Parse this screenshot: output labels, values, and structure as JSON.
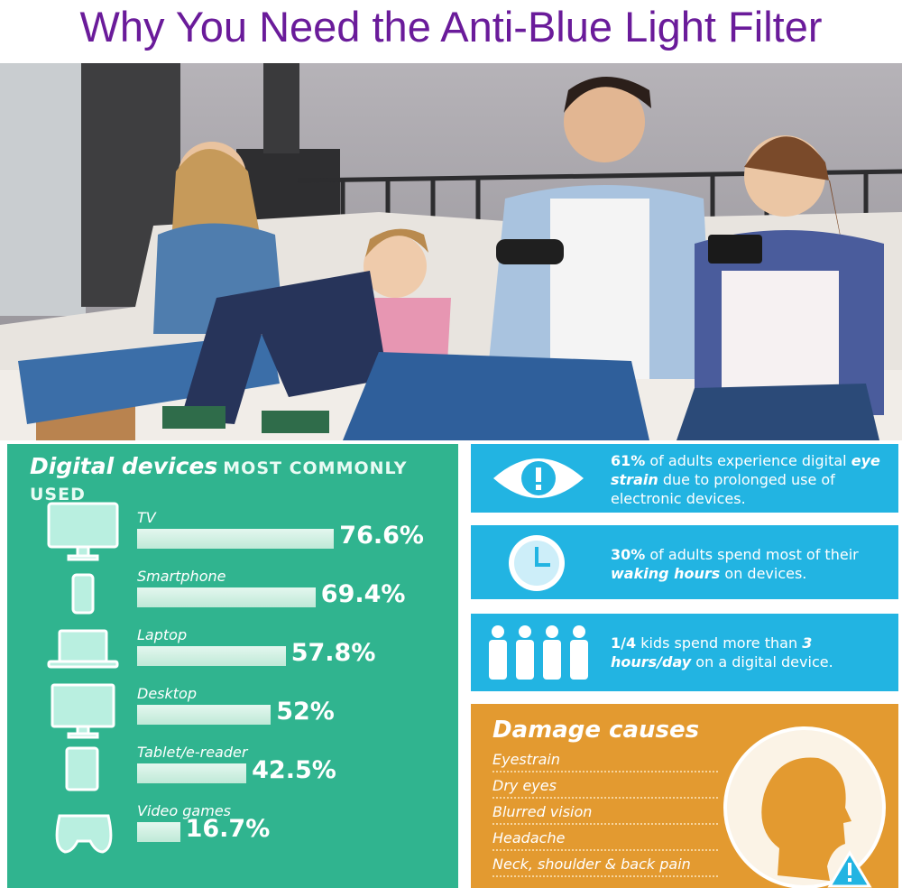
{
  "title": "Why You Need the Anti-Blue Light Filter",
  "devices": {
    "heading": "Digital devices",
    "subheading": "MOST COMMONLY USED",
    "categories": [
      "TV",
      "Smartphone",
      "Laptop",
      "Desktop",
      "Tablet/e-reader",
      "Video games"
    ],
    "values": [
      76.6,
      69.4,
      57.8,
      52,
      42.5,
      16.7
    ],
    "value_labels": [
      "76.6%",
      "69.4%",
      "57.8%",
      "52%",
      "42.5%",
      "16.7%"
    ]
  },
  "stats": [
    [
      "61%",
      " of adults experience digital ",
      "eye strain",
      " due to prolonged use of electronic devices."
    ],
    [
      "30%",
      " of adults spend most of their ",
      "waking hours",
      " on devices."
    ],
    [
      "1/4",
      " kids spend more than ",
      "3 hours/day",
      " on a digital device."
    ]
  ],
  "damage": {
    "title": "Damage causes",
    "items": [
      "Eyestrain",
      "Dry eyes",
      "Blurred vision",
      "Headache",
      "Neck, shoulder & back pain"
    ]
  }
}
